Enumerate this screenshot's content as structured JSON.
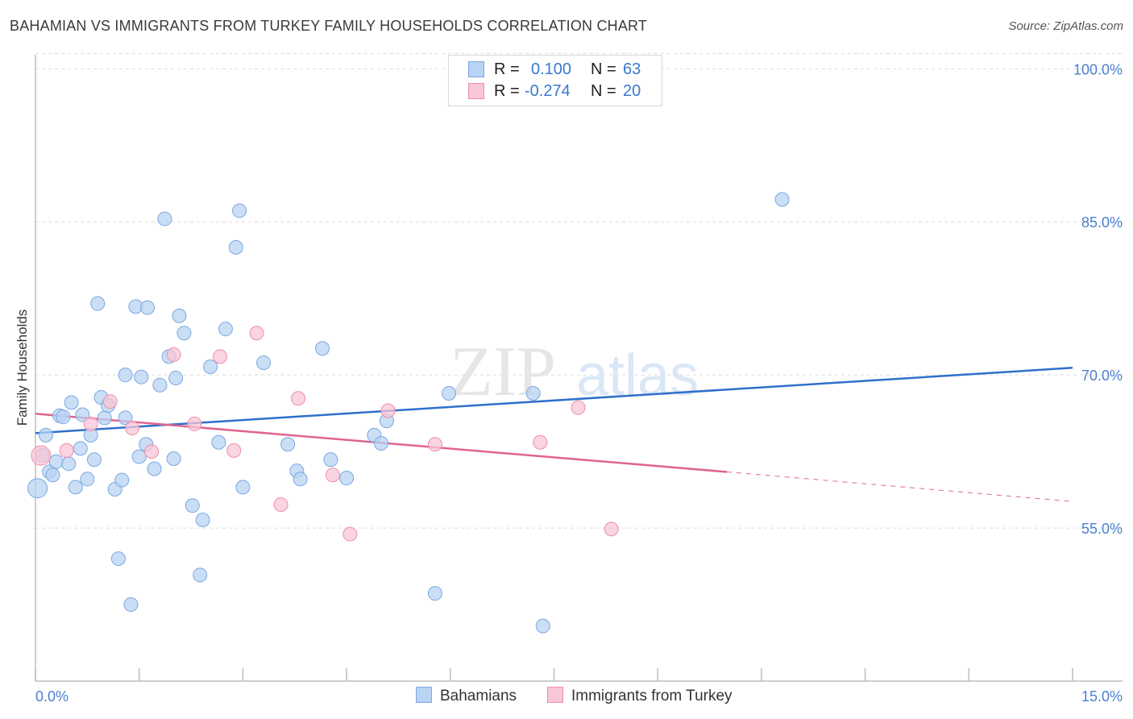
{
  "title": "BAHAMIAN VS IMMIGRANTS FROM TURKEY FAMILY HOUSEHOLDS CORRELATION CHART",
  "source": "Source: ZipAtlas.com",
  "watermark": {
    "zip": "ZIP",
    "atlas": "atlas"
  },
  "legend": {
    "series1": {
      "r_label": "R =",
      "r_value": "0.100",
      "n_label": "N =",
      "n_value": "63"
    },
    "series2": {
      "r_label": "R =",
      "r_value": "-0.274",
      "n_label": "N =",
      "n_value": "20"
    }
  },
  "colors": {
    "blue_fill": "#b8d3f3",
    "blue_stroke": "#7aa8e0",
    "blue_line": "#2f6fcb",
    "pink_fill": "#f8c6d5",
    "pink_stroke": "#ec8fab",
    "pink_line": "#e0648f",
    "axis_text": "#4a7fd0",
    "grid": "#dcdcdc"
  },
  "chart_data": {
    "type": "scatter",
    "title": "BAHAMIAN VS IMMIGRANTS FROM TURKEY FAMILY HOUSEHOLDS CORRELATION CHART",
    "xlabel": "",
    "ylabel": "Family Households",
    "xlim": [
      0,
      15
    ],
    "ylim": [
      40,
      102
    ],
    "x_tick_labels": [
      "0.0%",
      "15.0%"
    ],
    "y_ticks": [
      55,
      70,
      85,
      100
    ],
    "y_tick_labels": [
      "55.0%",
      "70.0%",
      "85.0%",
      "100.0%"
    ],
    "series": [
      {
        "name": "Bahamians",
        "color": "blue",
        "points": [
          [
            0.03,
            58.9
          ],
          [
            0.1,
            62.1
          ],
          [
            0.15,
            64.1
          ],
          [
            0.2,
            60.5
          ],
          [
            0.25,
            60.2
          ],
          [
            0.3,
            61.5
          ],
          [
            0.35,
            66.0
          ],
          [
            0.4,
            65.9
          ],
          [
            0.48,
            61.3
          ],
          [
            0.52,
            67.3
          ],
          [
            0.58,
            59.0
          ],
          [
            0.65,
            62.8
          ],
          [
            0.68,
            66.1
          ],
          [
            0.75,
            59.8
          ],
          [
            0.8,
            64.1
          ],
          [
            0.85,
            61.7
          ],
          [
            0.95,
            67.8
          ],
          [
            0.9,
            77.0
          ],
          [
            1.0,
            65.8
          ],
          [
            1.05,
            67.0
          ],
          [
            1.15,
            58.8
          ],
          [
            1.25,
            59.7
          ],
          [
            1.3,
            65.8
          ],
          [
            1.2,
            52.0
          ],
          [
            1.3,
            70.0
          ],
          [
            1.38,
            47.5
          ],
          [
            1.45,
            76.7
          ],
          [
            1.5,
            62.0
          ],
          [
            1.53,
            69.8
          ],
          [
            1.6,
            63.2
          ],
          [
            1.62,
            76.6
          ],
          [
            1.72,
            60.8
          ],
          [
            1.8,
            69.0
          ],
          [
            1.87,
            85.3
          ],
          [
            1.93,
            71.8
          ],
          [
            2.0,
            61.8
          ],
          [
            2.03,
            69.7
          ],
          [
            2.08,
            75.8
          ],
          [
            2.15,
            74.1
          ],
          [
            2.27,
            57.2
          ],
          [
            2.38,
            50.4
          ],
          [
            2.42,
            55.8
          ],
          [
            2.53,
            70.8
          ],
          [
            2.65,
            63.4
          ],
          [
            2.75,
            74.5
          ],
          [
            2.9,
            82.5
          ],
          [
            2.95,
            86.1
          ],
          [
            3.0,
            59.0
          ],
          [
            3.3,
            71.2
          ],
          [
            3.65,
            63.2
          ],
          [
            3.78,
            60.6
          ],
          [
            3.83,
            59.8
          ],
          [
            4.15,
            72.6
          ],
          [
            4.27,
            61.7
          ],
          [
            4.5,
            59.9
          ],
          [
            4.9,
            64.1
          ],
          [
            5.0,
            63.3
          ],
          [
            5.08,
            65.5
          ],
          [
            5.78,
            48.6
          ],
          [
            5.98,
            68.2
          ],
          [
            7.2,
            68.2
          ],
          [
            7.34,
            45.4
          ],
          [
            10.8,
            87.2
          ]
        ]
      },
      {
        "name": "Immigrants from Turkey",
        "color": "pink",
        "points": [
          [
            0.08,
            62.1
          ],
          [
            0.45,
            62.6
          ],
          [
            0.8,
            65.2
          ],
          [
            1.08,
            67.4
          ],
          [
            1.4,
            64.8
          ],
          [
            1.68,
            62.5
          ],
          [
            2.0,
            72.0
          ],
          [
            2.3,
            65.2
          ],
          [
            2.67,
            71.8
          ],
          [
            2.87,
            62.6
          ],
          [
            3.2,
            74.1
          ],
          [
            3.55,
            57.3
          ],
          [
            3.8,
            67.7
          ],
          [
            4.3,
            60.2
          ],
          [
            4.55,
            54.4
          ],
          [
            5.1,
            66.5
          ],
          [
            5.78,
            63.2
          ],
          [
            7.3,
            63.4
          ],
          [
            7.85,
            66.8
          ],
          [
            8.33,
            54.9
          ]
        ]
      }
    ],
    "trend_lines": [
      {
        "series": "Bahamians",
        "x": [
          0,
          15
        ],
        "y": [
          64.3,
          70.7
        ]
      },
      {
        "series": "Immigrants from Turkey",
        "x": [
          0,
          10.0
        ],
        "y": [
          66.2,
          60.5
        ],
        "dashed_extension_x": [
          10.0,
          15
        ],
        "dashed_extension_y": [
          60.5,
          57.6
        ]
      }
    ],
    "grid": true,
    "legend_position": "top-center"
  },
  "bottom_legend": {
    "series1_label": "Bahamians",
    "series2_label": "Immigrants from Turkey"
  }
}
